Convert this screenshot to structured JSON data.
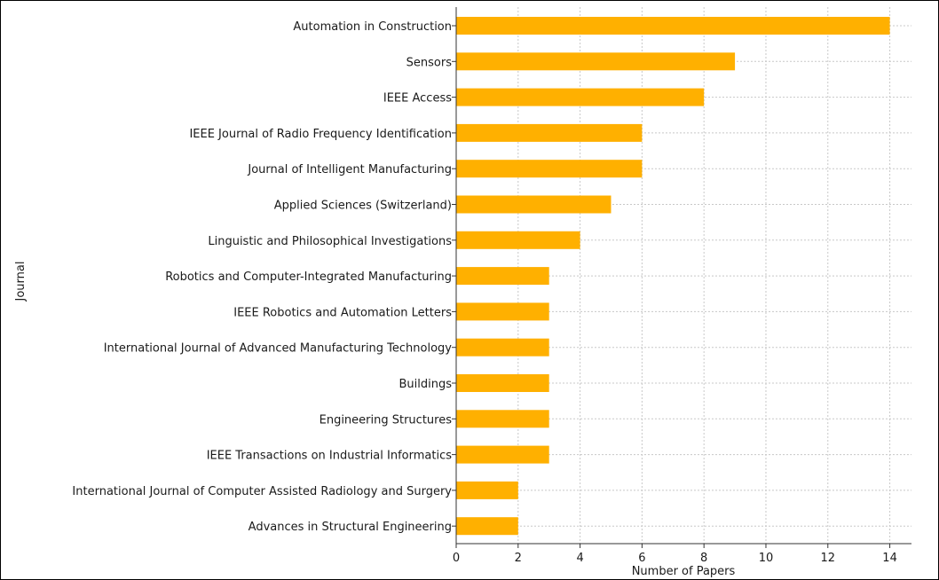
{
  "chart_data": {
    "type": "bar",
    "orientation": "horizontal",
    "categories": [
      "Automation in Construction",
      "Sensors",
      "IEEE Access",
      "IEEE Journal of Radio Frequency Identification",
      "Journal of Intelligent Manufacturing",
      "Applied Sciences (Switzerland)",
      "Linguistic and Philosophical Investigations",
      "Robotics and Computer-Integrated Manufacturing",
      "IEEE Robotics and Automation Letters",
      "International Journal of Advanced Manufacturing Technology",
      "Buildings",
      "Engineering Structures",
      "IEEE Transactions on Industrial Informatics",
      "International Journal of Computer Assisted Radiology and Surgery",
      "Advances in Structural Engineering"
    ],
    "values": [
      14,
      9,
      8,
      6,
      6,
      5,
      4,
      3,
      3,
      3,
      3,
      3,
      3,
      2,
      2
    ],
    "title": "",
    "xlabel": "Number of Papers",
    "ylabel": "Journal",
    "xlim": [
      0,
      14.7
    ],
    "xticks": [
      0,
      2,
      4,
      6,
      8,
      10,
      12,
      14
    ],
    "grid": true,
    "bar_color": "#FFB000"
  }
}
